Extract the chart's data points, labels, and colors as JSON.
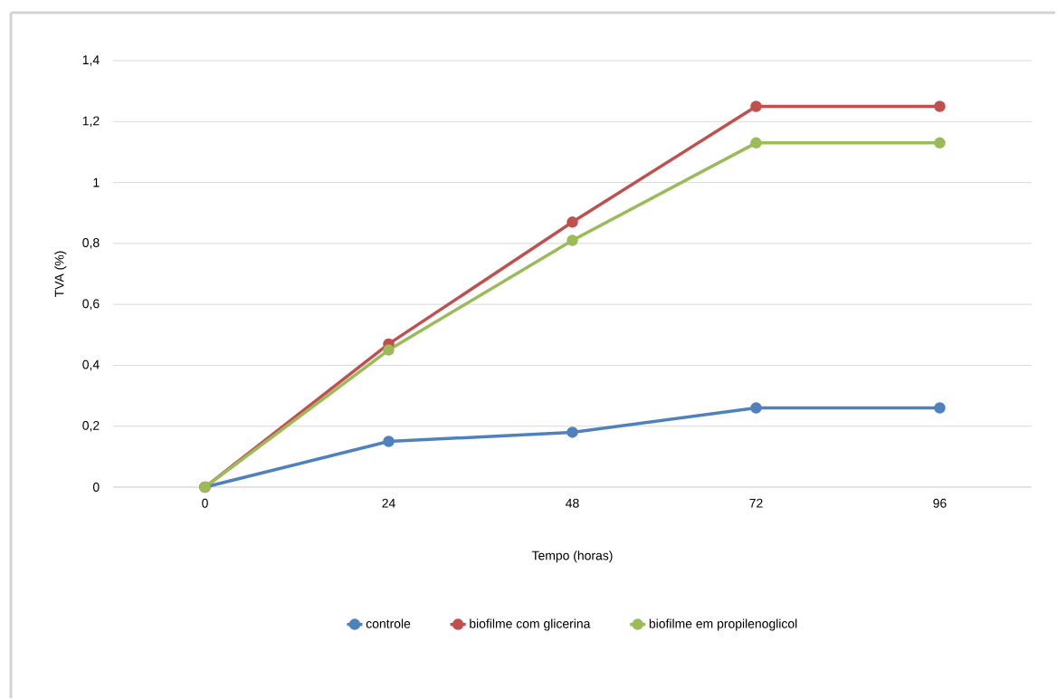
{
  "chart_data": {
    "type": "line",
    "xlabel": "Tempo (horas)",
    "ylabel": "TVA (%)",
    "categories": [
      "0",
      "24",
      "48",
      "72",
      "96"
    ],
    "series": [
      {
        "name": "controle",
        "color": "#4f81bd",
        "values": [
          0,
          0.15,
          0.18,
          0.26,
          0.26
        ]
      },
      {
        "name": "biofilme com glicerina",
        "color": "#c0504d",
        "values": [
          0,
          0.47,
          0.87,
          1.25,
          1.25
        ]
      },
      {
        "name": "biofilme  em propilenoglicol",
        "color": "#9bbb59",
        "values": [
          0,
          0.45,
          0.81,
          1.13,
          1.13
        ]
      }
    ],
    "ylim": [
      0,
      1.4
    ],
    "yticks": [
      {
        "value": 0,
        "label": "0"
      },
      {
        "value": 0.2,
        "label": "0,2"
      },
      {
        "value": 0.4,
        "label": "0,4"
      },
      {
        "value": 0.6,
        "label": "0,6"
      },
      {
        "value": 0.8,
        "label": "0,8"
      },
      {
        "value": 1,
        "label": "1"
      },
      {
        "value": 1.2,
        "label": "1,2"
      },
      {
        "value": 1.4,
        "label": "1,4"
      }
    ],
    "grid": "y",
    "legend": "bottom",
    "marker": "circle",
    "line_style": "solid"
  }
}
